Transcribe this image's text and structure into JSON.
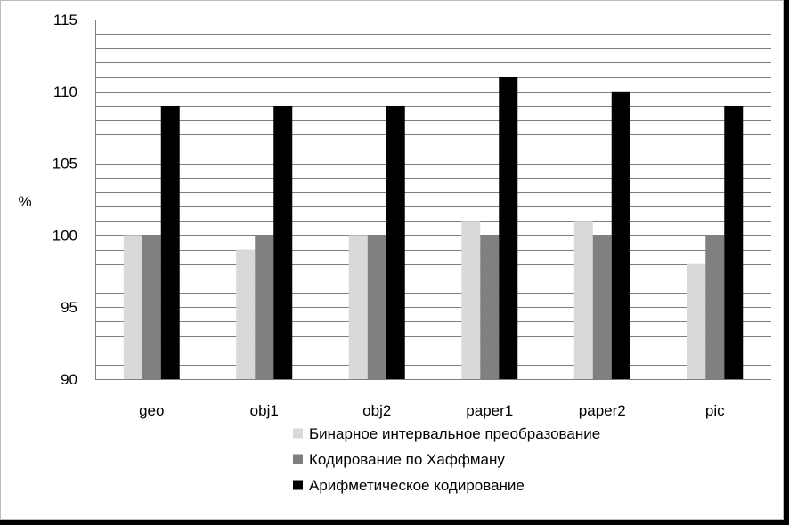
{
  "chart_data": {
    "type": "bar",
    "title": "",
    "xlabel": "",
    "ylabel": "%",
    "ylim": [
      90,
      115
    ],
    "yticks": [
      90,
      95,
      100,
      105,
      110,
      115
    ],
    "grid": true,
    "legend_position": "bottom-right",
    "categories": [
      "geo",
      "obj1",
      "obj2",
      "paper1",
      "paper2",
      "pic"
    ],
    "series": [
      {
        "name": "Бинарное интервальное преобразование",
        "color": "#d9d9d9",
        "values": [
          100,
          99,
          100,
          101,
          101,
          98
        ]
      },
      {
        "name": "Кодирование по Хаффману",
        "color": "#808080",
        "values": [
          100,
          100,
          100,
          100,
          100,
          100
        ]
      },
      {
        "name": "Арифметическое кодирование",
        "color": "#000000",
        "values": [
          109,
          109,
          109,
          111,
          110,
          109
        ]
      }
    ]
  }
}
